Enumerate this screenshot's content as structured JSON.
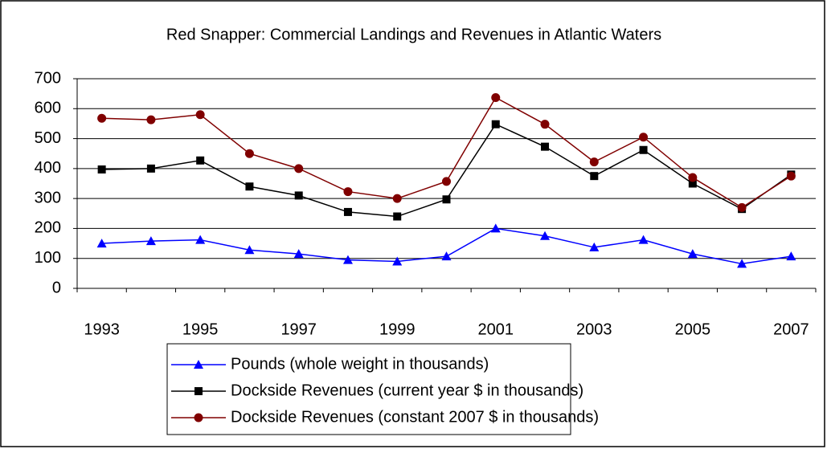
{
  "chart_data": {
    "type": "line",
    "title": "Red Snapper: Commercial Landings and Revenues in Atlantic Waters",
    "categories": [
      "1993",
      null,
      "1995",
      null,
      "1997",
      null,
      "1999",
      null,
      "2001",
      null,
      "2003",
      null,
      "2005",
      null,
      "2007"
    ],
    "series": [
      {
        "name": "Pounds (whole weight in thousands)",
        "color": "#0000ff",
        "marker": "triangle",
        "values": [
          150,
          158,
          162,
          128,
          115,
          95,
          90,
          107,
          200,
          175,
          137,
          162,
          115,
          82,
          107
        ]
      },
      {
        "name": "Dockside Revenues (current year $ in thousands)",
        "color": "#000000",
        "marker": "square",
        "values": [
          397,
          400,
          427,
          340,
          310,
          255,
          240,
          297,
          548,
          473,
          375,
          462,
          350,
          265,
          380
        ]
      },
      {
        "name": "Dockside Revenues (constant 2007 $ in thousands)",
        "color": "#800000",
        "marker": "circle",
        "values": [
          568,
          563,
          580,
          450,
          400,
          323,
          300,
          357,
          637,
          548,
          422,
          505,
          370,
          270,
          375
        ]
      }
    ],
    "ylim": [
      0,
      700
    ],
    "yticks": [
      0,
      100,
      200,
      300,
      400,
      500,
      600,
      700
    ],
    "grid": true,
    "legend": "bottom"
  }
}
